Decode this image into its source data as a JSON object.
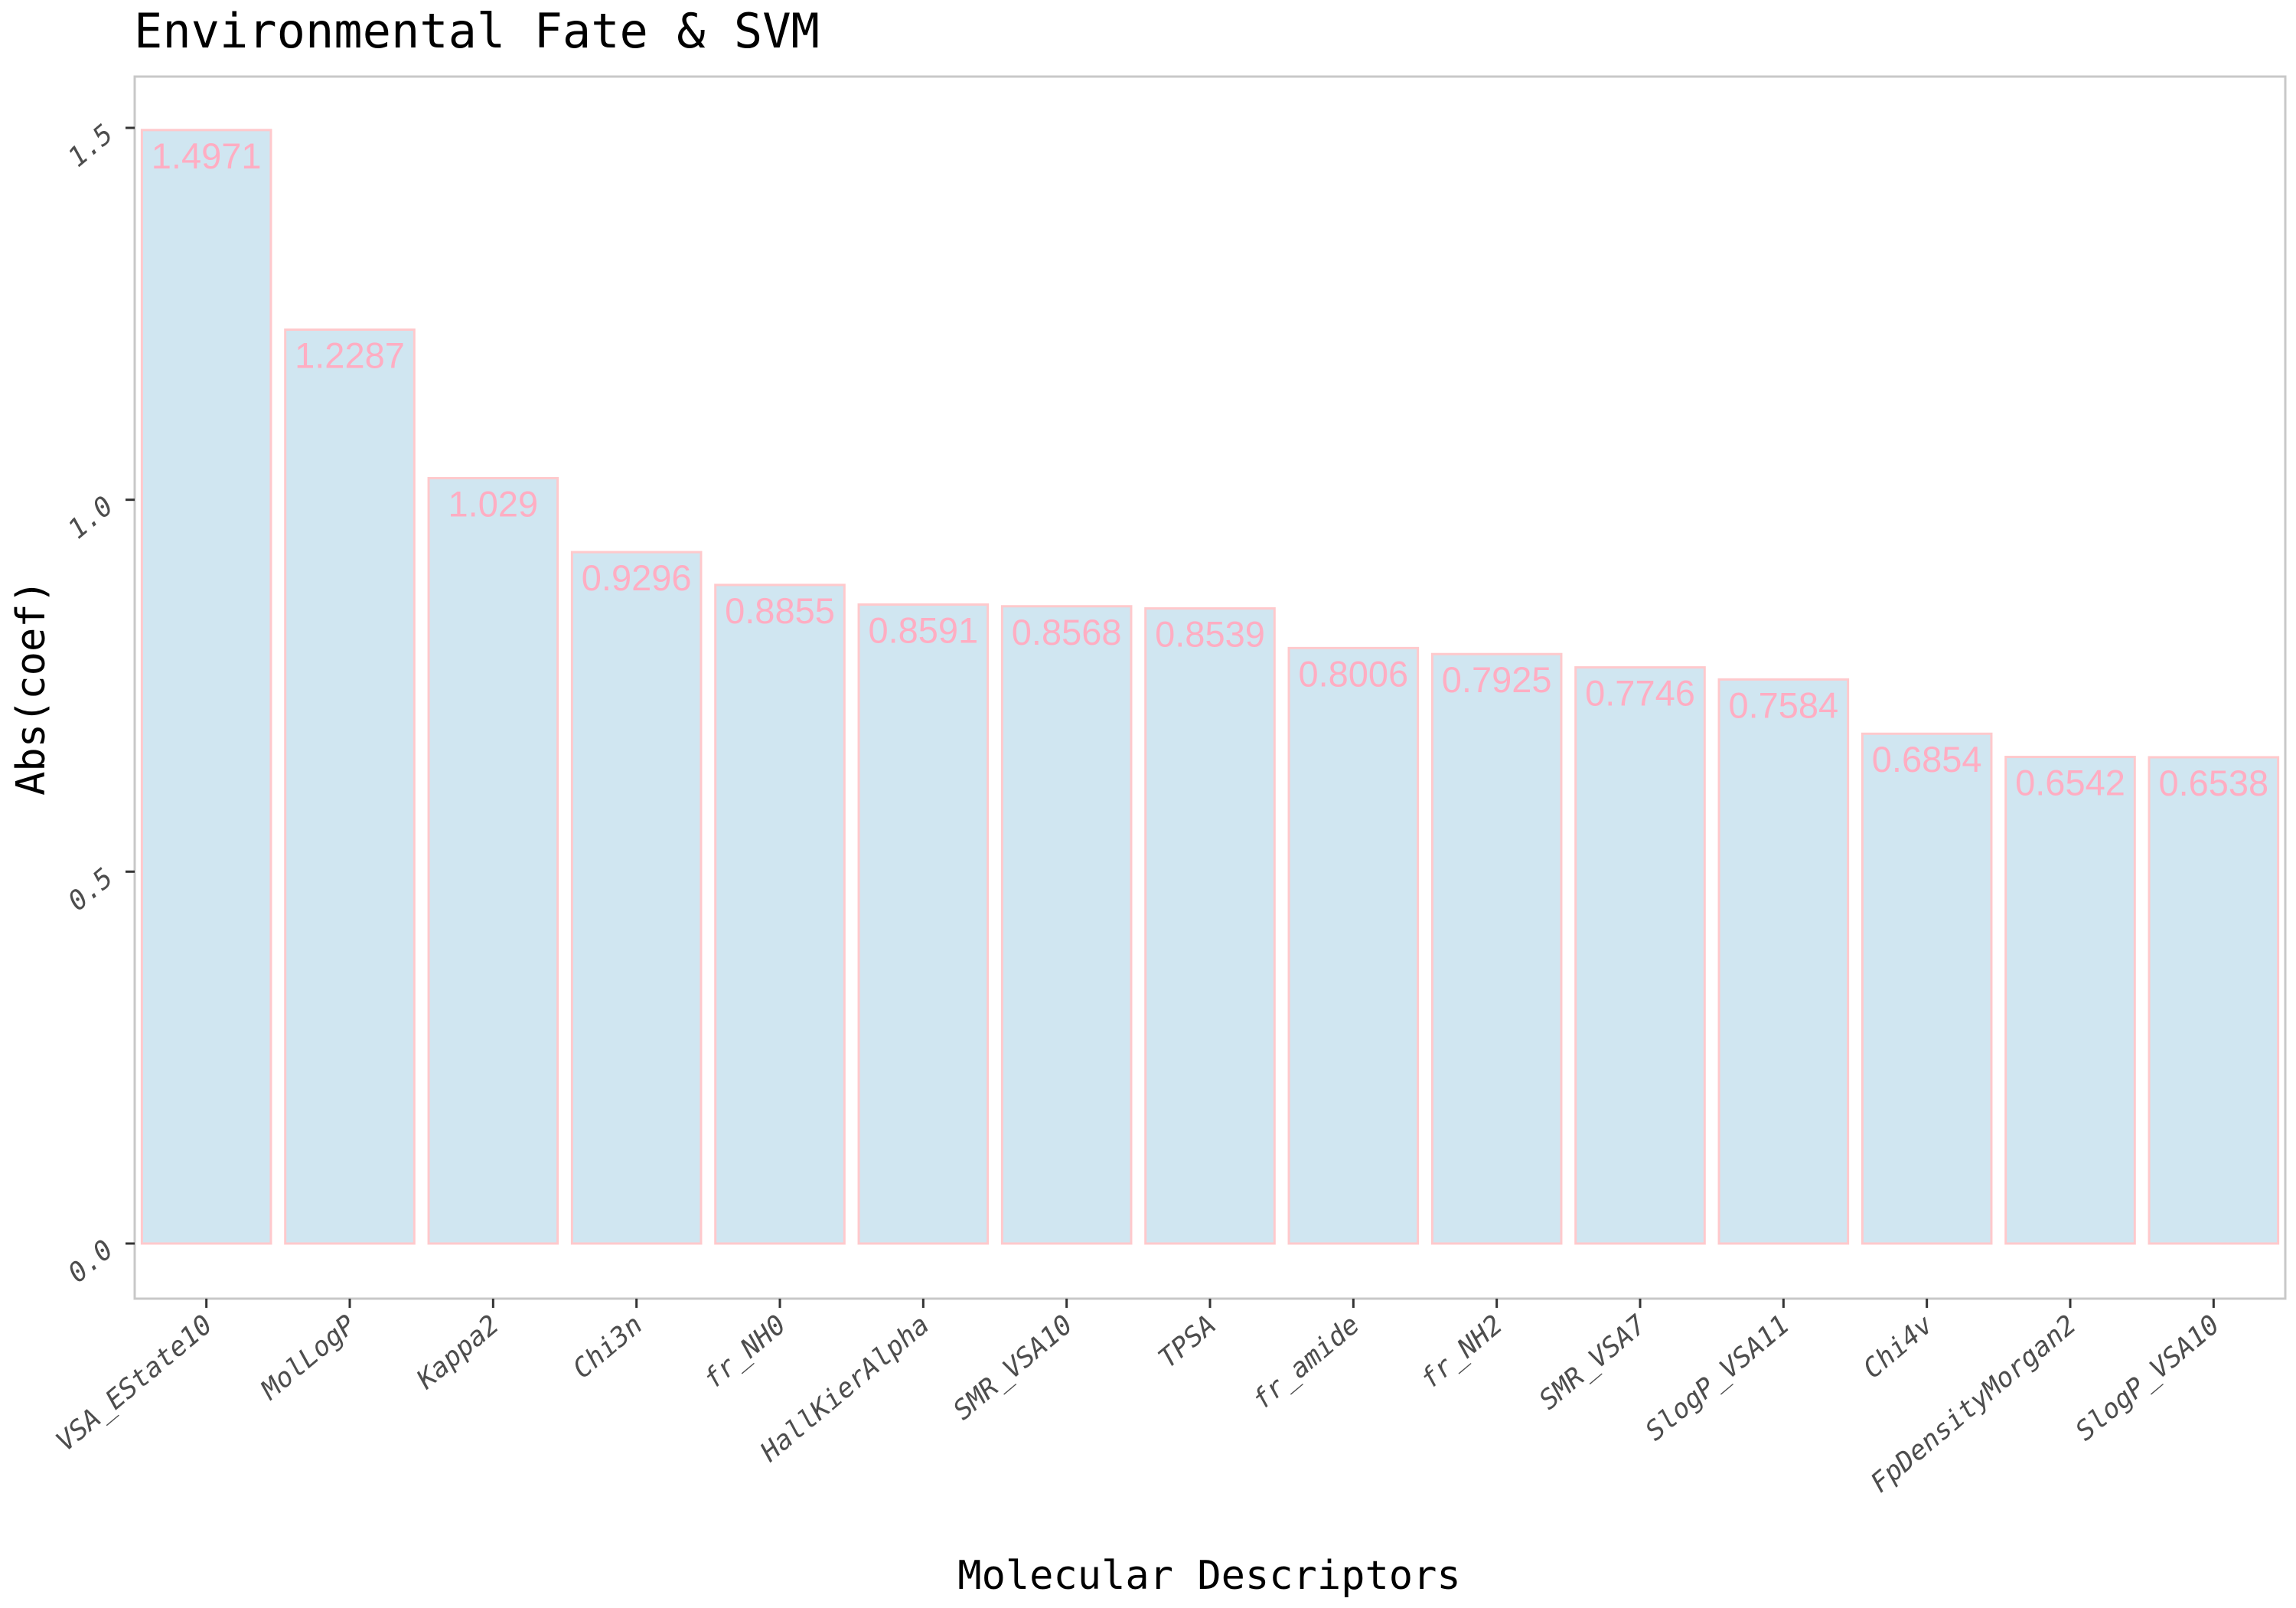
{
  "chart_data": {
    "type": "bar",
    "title": "Environmental Fate & SVM",
    "xlabel": "Molecular Descriptors",
    "ylabel": "Abs(coef)",
    "categories": [
      "VSA_EState10",
      "MolLogP",
      "Kappa2",
      "Chi3n",
      "fr_NH0",
      "HallKierAlpha",
      "SMR_VSA10",
      "TPSA",
      "fr_amide",
      "fr_NH2",
      "SMR_VSA7",
      "SlogP_VSA11",
      "Chi4v",
      "FpDensityMorgan2",
      "SlogP_VSA10"
    ],
    "values": [
      1.4971,
      1.2287,
      1.029,
      0.9296,
      0.8855,
      0.8591,
      0.8568,
      0.8539,
      0.8006,
      0.7925,
      0.7746,
      0.7584,
      0.6854,
      0.6542,
      0.6538
    ],
    "data_labels": [
      "1.4971",
      "1.2287",
      "1.029",
      "0.9296",
      "0.8855",
      "0.8591",
      "0.8568",
      "0.8539",
      "0.8006",
      "0.7925",
      "0.7746",
      "0.7584",
      "0.6854",
      "0.6542",
      "0.6538"
    ],
    "y_ticks": [
      0.0,
      0.5,
      1.0,
      1.5
    ],
    "y_tick_labels": [
      "0.0",
      "0.5",
      "1.0",
      "1.5"
    ],
    "ylim": [
      -0.073,
      1.57
    ],
    "grid": false,
    "legend": "none",
    "colors": {
      "bar_fill": "#d0e6f1",
      "bar_stroke": "#ffc9cc",
      "data_label": "#ffadc2",
      "panel_border": "#c8c8c8",
      "tick": "#333333"
    }
  }
}
